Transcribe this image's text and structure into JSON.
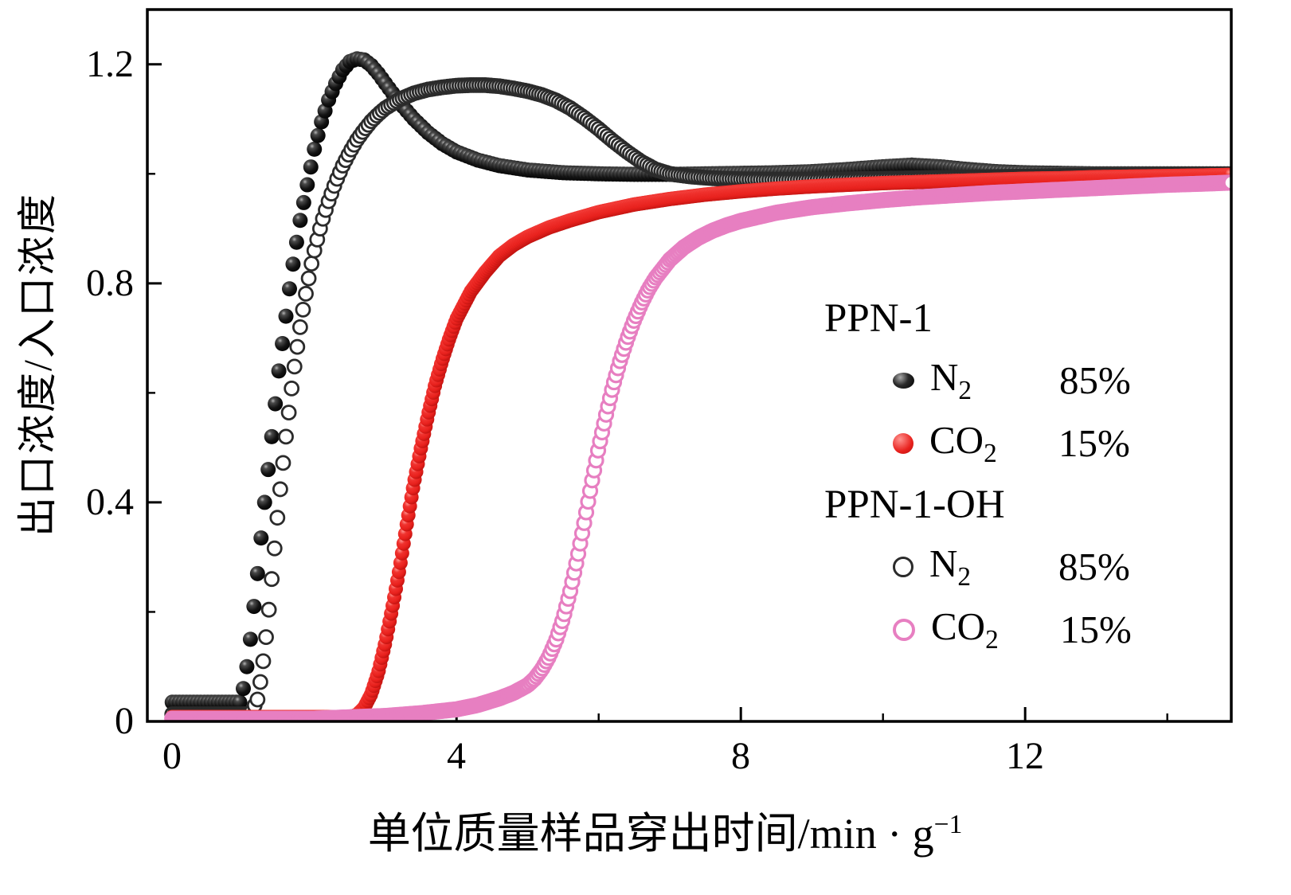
{
  "colors": {
    "ppn1_n2": "#0d0d0d",
    "ppn1_co2": "#e8211d",
    "ppn1oh_n2": "#2b2b2b",
    "ppn1oh_co2": "#e77fc1",
    "frame": "#000000",
    "background": "#ffffff"
  },
  "legend": {
    "groups": [
      {
        "title": "PPN-1",
        "items": [
          {
            "marker": "black-filled-circle",
            "gas_main": "N",
            "gas_sub": "2",
            "percent": "85%"
          },
          {
            "marker": "red-filled-circle",
            "gas_main": "CO",
            "gas_sub": "2",
            "percent": "15%"
          }
        ]
      },
      {
        "title": "PPN-1-OH",
        "items": [
          {
            "marker": "dark-open-circle",
            "gas_main": "N",
            "gas_sub": "2",
            "percent": "85%"
          },
          {
            "marker": "pink-open-circle",
            "gas_main": "CO",
            "gas_sub": "2",
            "percent": "15%"
          }
        ]
      }
    ]
  },
  "chart_data": {
    "type": "scatter",
    "title": "",
    "xlabel": "单位质量样品穿出时间/min · g⁻¹",
    "xlabel_main": "单位质量样品穿出时间/min · g",
    "xlabel_sup": "−1",
    "ylabel": "出口浓度/入口浓度",
    "xlim": [
      -0.35,
      14.9
    ],
    "ylim": [
      0,
      1.3
    ],
    "grid": false,
    "legend_position": "inside middle-right",
    "x_ticks": {
      "values": [
        0,
        4,
        8,
        12
      ],
      "labels": [
        "0",
        "4",
        "8",
        "12"
      ]
    },
    "y_ticks": {
      "values": [
        0,
        0.4,
        0.8,
        1.2
      ],
      "labels": [
        "0",
        "0.4",
        "0.8",
        "1.2"
      ]
    },
    "x_minor_ticks": [
      2,
      6,
      10,
      14
    ],
    "y_minor_ticks": [
      0.2,
      0.6,
      1.0
    ],
    "series": [
      {
        "name": "PPN-1 N2 85%",
        "group": "PPN-1",
        "gas": "N2",
        "percent": "85%",
        "marker": "filled-circle",
        "color": "#0d0d0d",
        "gradient": "gradBlack",
        "open": false,
        "radius": 9.5,
        "stroke_width": 0,
        "step": 0.05,
        "points": [
          [
            0,
            0.035
          ],
          [
            0.95,
            0.035
          ],
          [
            1.0,
            0.06
          ],
          [
            1.05,
            0.1
          ],
          [
            1.1,
            0.15
          ],
          [
            1.15,
            0.21
          ],
          [
            1.2,
            0.27
          ],
          [
            1.25,
            0.335
          ],
          [
            1.3,
            0.4
          ],
          [
            1.35,
            0.46
          ],
          [
            1.4,
            0.52
          ],
          [
            1.45,
            0.58
          ],
          [
            1.5,
            0.64
          ],
          [
            1.55,
            0.69
          ],
          [
            1.6,
            0.74
          ],
          [
            1.65,
            0.79
          ],
          [
            1.7,
            0.835
          ],
          [
            1.75,
            0.875
          ],
          [
            1.8,
            0.915
          ],
          [
            1.9,
            0.98
          ],
          [
            2.0,
            1.045
          ],
          [
            2.1,
            1.095
          ],
          [
            2.2,
            1.135
          ],
          [
            2.3,
            1.165
          ],
          [
            2.4,
            1.19
          ],
          [
            2.5,
            1.205
          ],
          [
            2.6,
            1.21
          ],
          [
            2.7,
            1.208
          ],
          [
            2.8,
            1.198
          ],
          [
            2.9,
            1.183
          ],
          [
            3.0,
            1.165
          ],
          [
            3.2,
            1.13
          ],
          [
            3.4,
            1.1
          ],
          [
            3.6,
            1.075
          ],
          [
            3.8,
            1.055
          ],
          [
            4.0,
            1.04
          ],
          [
            4.3,
            1.025
          ],
          [
            4.6,
            1.015
          ],
          [
            5.0,
            1.007
          ],
          [
            5.5,
            1.002
          ],
          [
            6.0,
            1.0
          ],
          [
            6.5,
            0.999
          ],
          [
            7.0,
            0.999
          ],
          [
            7.5,
            1.0
          ],
          [
            8.0,
            1.001
          ],
          [
            8.5,
            1.002
          ],
          [
            9.0,
            1.004
          ],
          [
            9.5,
            1.008
          ],
          [
            10.0,
            1.013
          ],
          [
            10.4,
            1.016
          ],
          [
            10.8,
            1.013
          ],
          [
            11.2,
            1.008
          ],
          [
            11.6,
            1.004
          ],
          [
            12.0,
            1.002
          ],
          [
            13.0,
            1.0
          ],
          [
            14.0,
            1.0
          ],
          [
            14.9,
            1.0
          ]
        ]
      },
      {
        "name": "PPN-1-OH N2 85%",
        "group": "PPN-1-OH",
        "gas": "N2",
        "percent": "85%",
        "marker": "open-circle",
        "color": "#2b2b2b",
        "gradient": null,
        "open": true,
        "radius": 8.5,
        "stroke_width": 2.8,
        "step": 0.04,
        "points": [
          [
            0,
            0.013
          ],
          [
            1.1,
            0.013
          ],
          [
            1.2,
            0.04
          ],
          [
            1.25,
            0.08
          ],
          [
            1.3,
            0.13
          ],
          [
            1.35,
            0.19
          ],
          [
            1.4,
            0.26
          ],
          [
            1.45,
            0.33
          ],
          [
            1.5,
            0.4
          ],
          [
            1.55,
            0.46
          ],
          [
            1.6,
            0.52
          ],
          [
            1.65,
            0.575
          ],
          [
            1.7,
            0.63
          ],
          [
            1.75,
            0.675
          ],
          [
            1.8,
            0.72
          ],
          [
            1.85,
            0.76
          ],
          [
            1.9,
            0.795
          ],
          [
            1.95,
            0.83
          ],
          [
            2.0,
            0.86
          ],
          [
            2.1,
            0.91
          ],
          [
            2.2,
            0.95
          ],
          [
            2.3,
            0.985
          ],
          [
            2.4,
            1.015
          ],
          [
            2.5,
            1.04
          ],
          [
            2.6,
            1.062
          ],
          [
            2.7,
            1.08
          ],
          [
            2.8,
            1.096
          ],
          [
            2.9,
            1.109
          ],
          [
            3.0,
            1.12
          ],
          [
            3.2,
            1.136
          ],
          [
            3.4,
            1.147
          ],
          [
            3.6,
            1.154
          ],
          [
            3.8,
            1.158
          ],
          [
            4.0,
            1.161
          ],
          [
            4.2,
            1.162
          ],
          [
            4.4,
            1.162
          ],
          [
            4.6,
            1.16
          ],
          [
            4.8,
            1.156
          ],
          [
            5.0,
            1.151
          ],
          [
            5.2,
            1.144
          ],
          [
            5.4,
            1.134
          ],
          [
            5.6,
            1.12
          ],
          [
            5.8,
            1.102
          ],
          [
            6.0,
            1.082
          ],
          [
            6.2,
            1.06
          ],
          [
            6.4,
            1.04
          ],
          [
            6.6,
            1.022
          ],
          [
            6.8,
            1.008
          ],
          [
            7.0,
            1.0
          ],
          [
            7.3,
            0.995
          ],
          [
            7.6,
            0.992
          ],
          [
            8.0,
            0.99
          ],
          [
            8.5,
            0.989
          ],
          [
            9.0,
            0.989
          ],
          [
            9.5,
            0.99
          ],
          [
            10.0,
            0.991
          ],
          [
            10.5,
            0.992
          ],
          [
            11.0,
            0.993
          ],
          [
            11.5,
            0.994
          ],
          [
            12.0,
            0.995
          ],
          [
            12.5,
            0.996
          ],
          [
            13.0,
            0.997
          ],
          [
            13.5,
            0.997
          ],
          [
            14.0,
            0.998
          ],
          [
            14.5,
            0.999
          ],
          [
            14.9,
            0.999
          ]
        ]
      },
      {
        "name": "PPN-1 CO2 15%",
        "group": "PPN-1",
        "gas": "CO2",
        "percent": "15%",
        "marker": "filled-circle",
        "color": "#e8211d",
        "gradient": "gradRed",
        "open": false,
        "radius": 9,
        "stroke_width": 0,
        "step": 0.022,
        "points": [
          [
            0,
            0.008
          ],
          [
            2.5,
            0.008
          ],
          [
            2.6,
            0.012
          ],
          [
            2.7,
            0.025
          ],
          [
            2.8,
            0.05
          ],
          [
            2.9,
            0.09
          ],
          [
            3.0,
            0.145
          ],
          [
            3.1,
            0.21
          ],
          [
            3.2,
            0.28
          ],
          [
            3.3,
            0.36
          ],
          [
            3.4,
            0.435
          ],
          [
            3.5,
            0.5
          ],
          [
            3.6,
            0.56
          ],
          [
            3.7,
            0.615
          ],
          [
            3.8,
            0.66
          ],
          [
            3.9,
            0.7
          ],
          [
            4.0,
            0.735
          ],
          [
            4.2,
            0.785
          ],
          [
            4.4,
            0.82
          ],
          [
            4.6,
            0.85
          ],
          [
            4.8,
            0.87
          ],
          [
            5.0,
            0.885
          ],
          [
            5.3,
            0.902
          ],
          [
            5.6,
            0.915
          ],
          [
            6.0,
            0.93
          ],
          [
            6.5,
            0.944
          ],
          [
            7.0,
            0.954
          ],
          [
            7.5,
            0.962
          ],
          [
            8.0,
            0.968
          ],
          [
            8.5,
            0.973
          ],
          [
            9.0,
            0.977
          ],
          [
            9.5,
            0.98
          ],
          [
            10.0,
            0.983
          ],
          [
            10.5,
            0.985
          ],
          [
            11.0,
            0.987
          ],
          [
            11.5,
            0.989
          ],
          [
            12.0,
            0.991
          ],
          [
            12.5,
            0.992
          ],
          [
            13.0,
            0.994
          ],
          [
            13.5,
            0.995
          ],
          [
            14.0,
            0.996
          ],
          [
            14.5,
            0.997
          ],
          [
            14.9,
            0.998
          ]
        ]
      },
      {
        "name": "PPN-1-OH CO2 15%",
        "group": "PPN-1-OH",
        "gas": "CO2",
        "percent": "15%",
        "marker": "open-circle",
        "color": "#e77fc1",
        "gradient": null,
        "open": true,
        "radius": 8.5,
        "stroke_width": 3.2,
        "step": 0.028,
        "points": [
          [
            0,
            0.005
          ],
          [
            2.0,
            0.005
          ],
          [
            3.0,
            0.01
          ],
          [
            3.5,
            0.015
          ],
          [
            4.0,
            0.022
          ],
          [
            4.3,
            0.03
          ],
          [
            4.6,
            0.042
          ],
          [
            4.8,
            0.052
          ],
          [
            5.0,
            0.066
          ],
          [
            5.1,
            0.078
          ],
          [
            5.2,
            0.095
          ],
          [
            5.3,
            0.118
          ],
          [
            5.4,
            0.148
          ],
          [
            5.5,
            0.188
          ],
          [
            5.6,
            0.238
          ],
          [
            5.7,
            0.298
          ],
          [
            5.8,
            0.365
          ],
          [
            5.9,
            0.435
          ],
          [
            6.0,
            0.5
          ],
          [
            6.1,
            0.558
          ],
          [
            6.2,
            0.612
          ],
          [
            6.3,
            0.658
          ],
          [
            6.4,
            0.698
          ],
          [
            6.5,
            0.733
          ],
          [
            6.6,
            0.763
          ],
          [
            6.7,
            0.789
          ],
          [
            6.8,
            0.81
          ],
          [
            7.0,
            0.843
          ],
          [
            7.2,
            0.866
          ],
          [
            7.4,
            0.883
          ],
          [
            7.6,
            0.896
          ],
          [
            7.8,
            0.906
          ],
          [
            8.0,
            0.914
          ],
          [
            8.5,
            0.929
          ],
          [
            9.0,
            0.939
          ],
          [
            9.5,
            0.946
          ],
          [
            10.0,
            0.952
          ],
          [
            10.5,
            0.957
          ],
          [
            11.0,
            0.961
          ],
          [
            11.5,
            0.965
          ],
          [
            12.0,
            0.968
          ],
          [
            12.5,
            0.971
          ],
          [
            13.0,
            0.974
          ],
          [
            13.5,
            0.977
          ],
          [
            14.0,
            0.98
          ],
          [
            14.5,
            0.982
          ],
          [
            14.9,
            0.984
          ]
        ]
      }
    ]
  }
}
